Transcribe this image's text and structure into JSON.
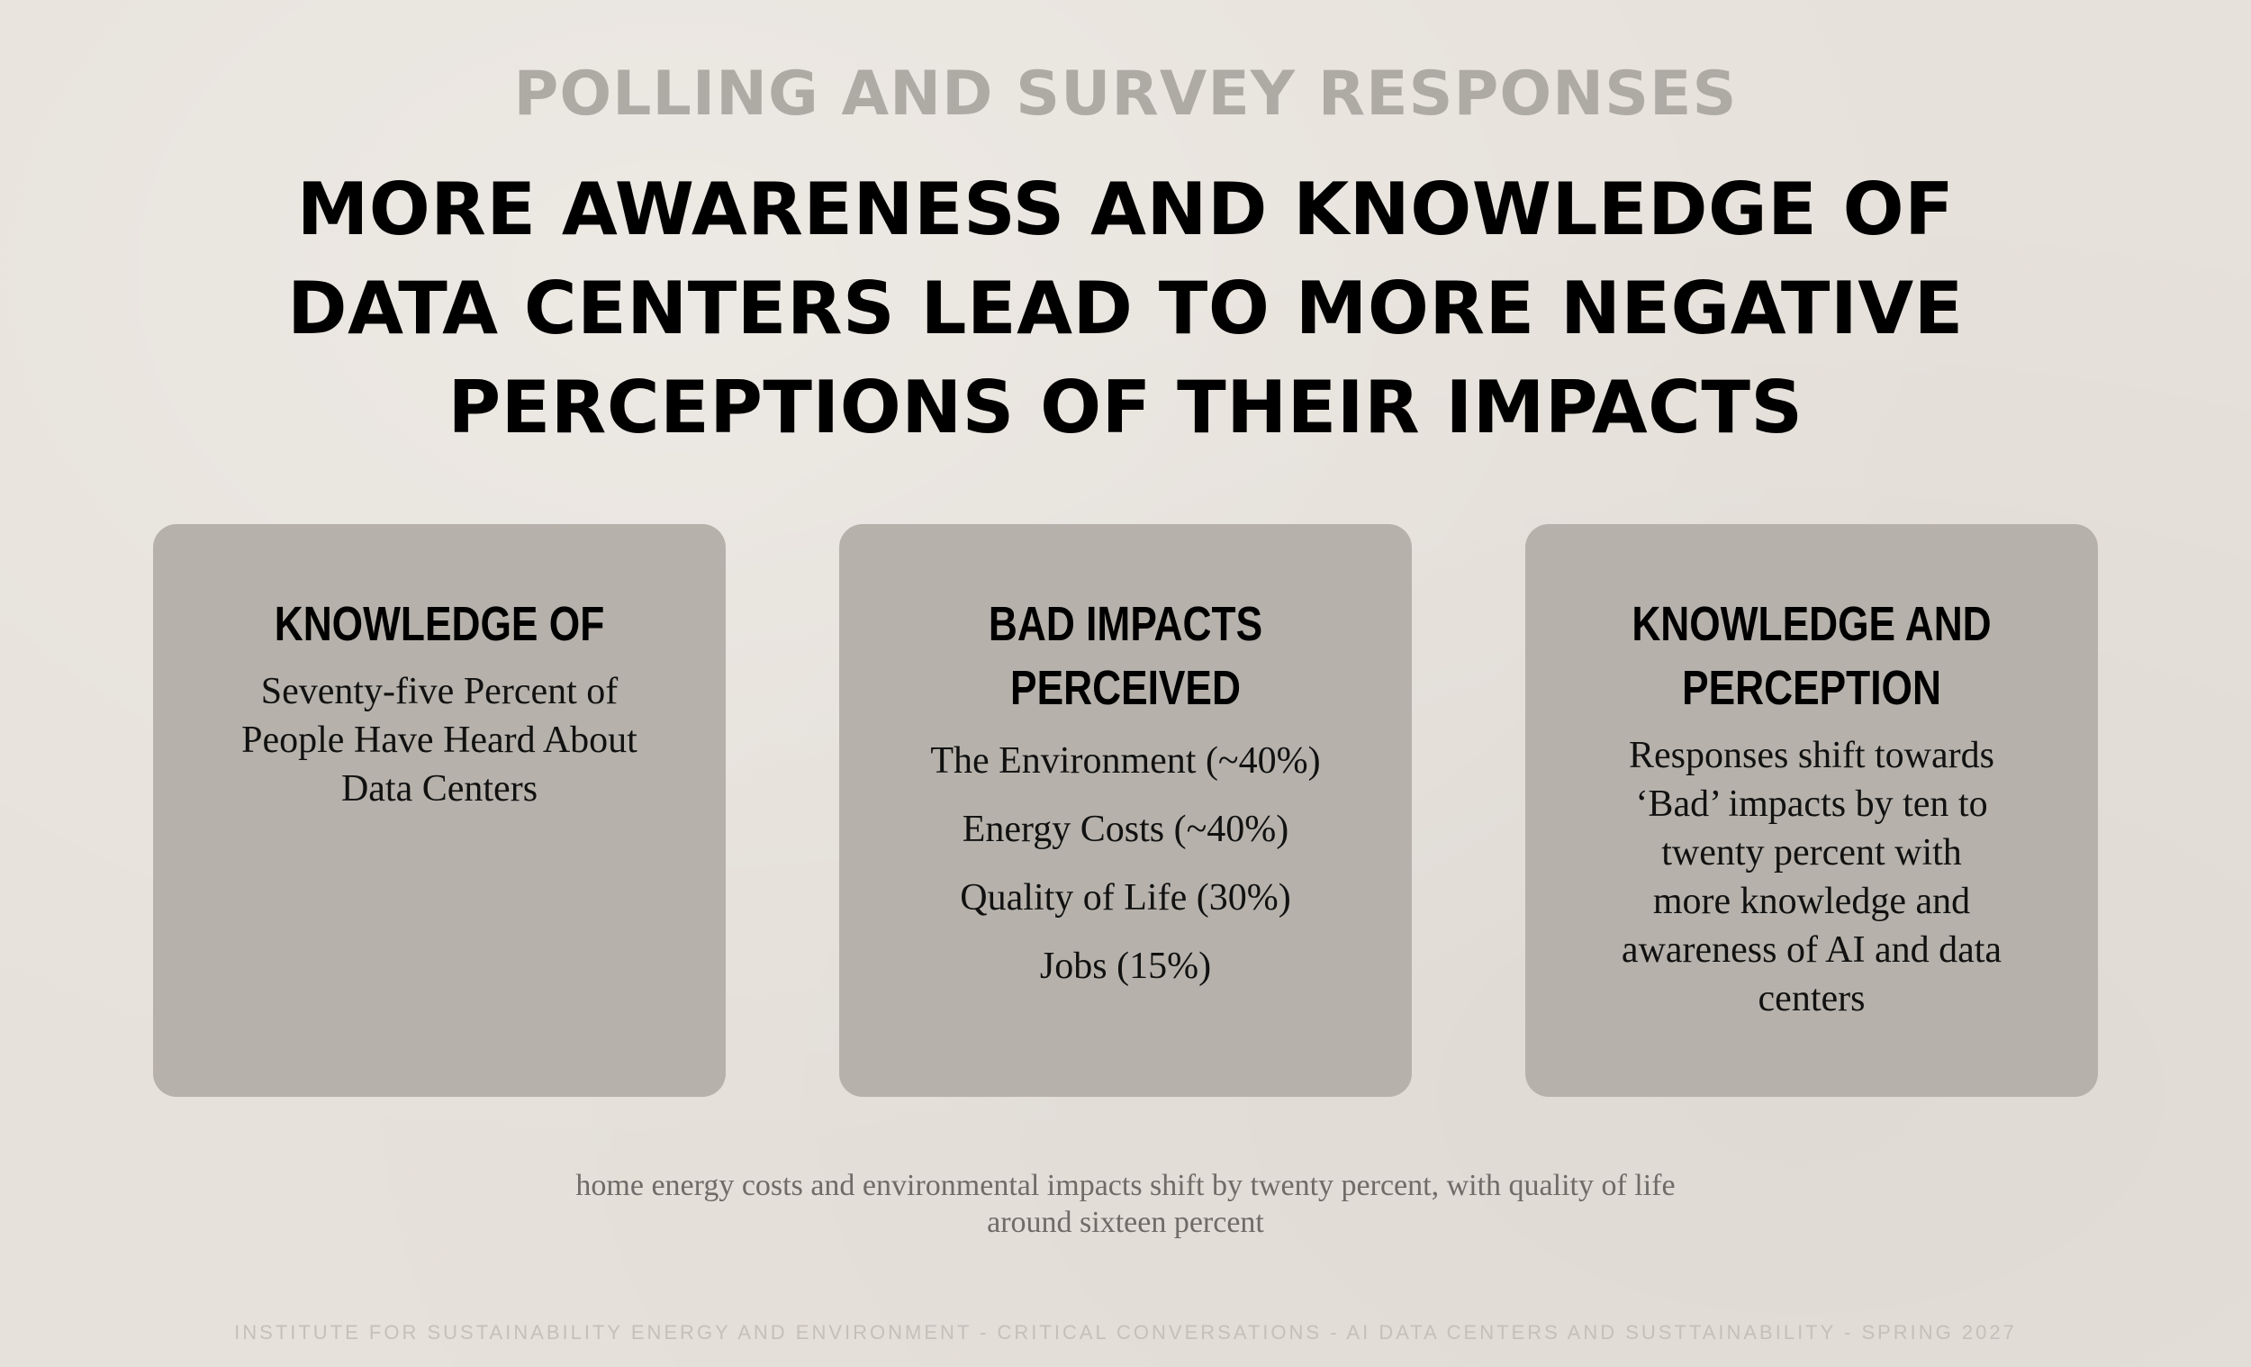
{
  "slide": {
    "kicker": "POLLING AND SURVEY RESPONSES",
    "headline_lines": [
      "MORE AWARENESS AND KNOWLEDGE OF",
      "DATA CENTERS LEAD TO MORE NEGATIVE",
      "PERCEPTIONS OF THEIR IMPACTS"
    ]
  },
  "cards": [
    {
      "title_lines": [
        "KNOWLEDGE OF"
      ],
      "body_lines": [
        "Seventy-five Percent of",
        "People Have Heard About",
        "Data Centers"
      ]
    },
    {
      "title_lines": [
        "BAD IMPACTS",
        "PERCEIVED"
      ],
      "items": [
        "The Environment (~40%)",
        "Energy Costs (~40%)",
        "Quality of Life (30%)",
        "Jobs (15%)"
      ]
    },
    {
      "title_lines": [
        "KNOWLEDGE AND",
        "PERCEPTION"
      ],
      "body_lines": [
        "Responses shift towards",
        "‘Bad’ impacts by ten to",
        "twenty percent with",
        "more knowledge and",
        "awareness of AI and data",
        "centers"
      ]
    }
  ],
  "caption_lines": [
    "home energy costs and environmental impacts shift by twenty percent, with quality of life",
    "around sixteen percent"
  ],
  "footer": "INSTITUTE FOR SUSTAINABILITY ENERGY AND ENVIRONMENT - CRITICAL CONVERSATIONS - AI DATA CENTERS AND SUSTTAINABILITY - SPRING 2027"
}
